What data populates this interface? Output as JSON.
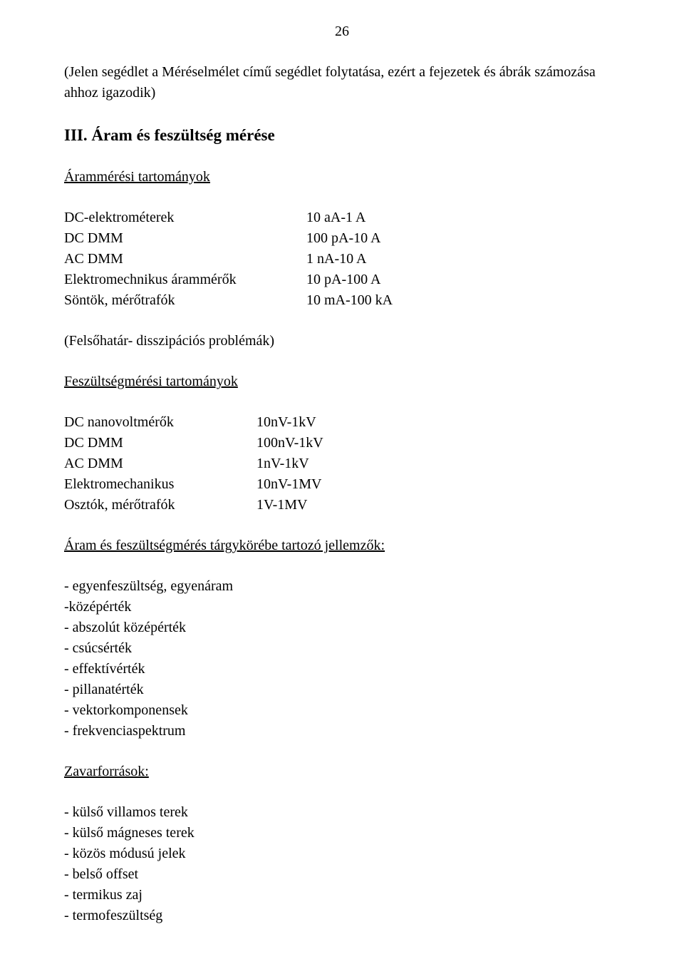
{
  "page_number": "26",
  "note": "(Jelen segédlet a Méréselmélet című segédlet folytatása, ezért a fejezetek és ábrák számozása ahhoz igazodik)",
  "section_title": "III. Áram és feszültség mérése",
  "current_ranges_heading": "Árammérési tartományok",
  "current_ranges": [
    {
      "label": "DC-elektrométerek",
      "value": "10 aA-1 A"
    },
    {
      "label": "DC DMM",
      "value": "100 pA-10 A"
    },
    {
      "label": "AC DMM",
      "value": "1 nA-10 A"
    },
    {
      "label": "Elektromechnikus árammérők",
      "value": "10 pA-100 A"
    },
    {
      "label": "Söntök, mérőtrafók",
      "value": "10 mA-100 kA"
    }
  ],
  "upper_limit_note": "(Felsőhatár- disszipációs problémák)",
  "voltage_ranges_heading": "Feszültségmérési tartományok",
  "voltage_ranges": [
    {
      "label": "DC nanovoltmérők",
      "value": "10nV-1kV"
    },
    {
      "label": "DC DMM",
      "value": "100nV-1kV"
    },
    {
      "label": "AC DMM",
      "value": "1nV-1kV"
    },
    {
      "label": "Elektromechanikus",
      "value": "10nV-1MV"
    },
    {
      "label": "Osztók, mérőtrafók",
      "value": "1V-1MV"
    }
  ],
  "characteristics_heading": "Áram és feszültségmérés tárgykörébe tartozó jellemzők:",
  "characteristics": [
    "- egyenfeszültség, egyenáram",
    "-középérték",
    "- abszolút középérték",
    "- csúcsérték",
    "- effektívérték",
    "- pillanatérték",
    "- vektorkomponensek",
    "- frekvenciaspektrum"
  ],
  "noise_heading": "Zavarforrások:",
  "noise_sources": [
    "- külső villamos terek",
    "- külső mágneses terek",
    "- közös módusú jelek",
    "- belső offset",
    "- termikus zaj",
    "- termofeszültség"
  ]
}
